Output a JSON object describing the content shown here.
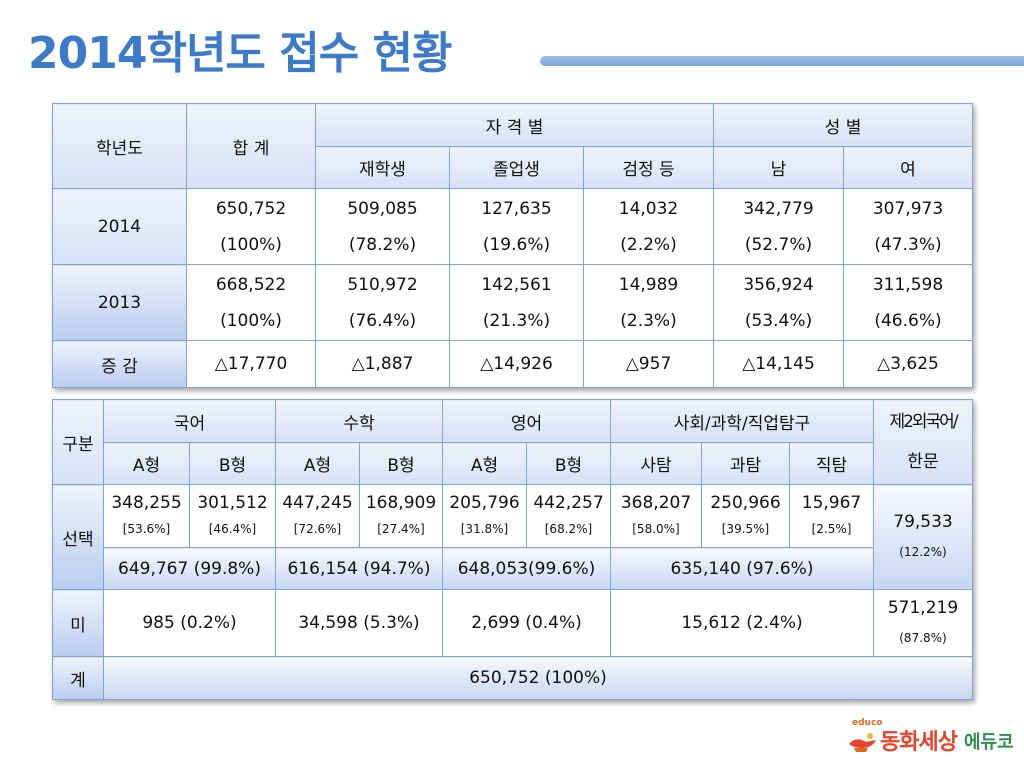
{
  "title": "2014학년도 접수 현황",
  "table1": {
    "h_year": "학년도",
    "h_total": "합 계",
    "h_qual": "자 격 별",
    "h_gender": "성 별",
    "h_sub": [
      "재학생",
      "졸업생",
      "검정 등",
      "남",
      "여"
    ],
    "rows": [
      {
        "year": "2014",
        "cells": [
          {
            "n": "650,752",
            "p": "(100%)"
          },
          {
            "n": "509,085",
            "p": "(78.2%)"
          },
          {
            "n": "127,635",
            "p": "(19.6%)"
          },
          {
            "n": "14,032",
            "p": "(2.2%)"
          },
          {
            "n": "342,779",
            "p": "(52.7%)"
          },
          {
            "n": "307,973",
            "p": "(47.3%)"
          }
        ]
      },
      {
        "year": "2013",
        "cells": [
          {
            "n": "668,522",
            "p": "(100%)"
          },
          {
            "n": "510,972",
            "p": "(76.4%)"
          },
          {
            "n": "142,561",
            "p": "(21.3%)"
          },
          {
            "n": "14,989",
            "p": "(2.3%)"
          },
          {
            "n": "356,924",
            "p": "(53.4%)"
          },
          {
            "n": "311,598",
            "p": "(46.6%)"
          }
        ]
      }
    ],
    "diff_label": "증 감",
    "diff": [
      "△17,770",
      "△1,887",
      "△14,926",
      "△957",
      "△14,145",
      "△3,625"
    ]
  },
  "table2": {
    "h_gubun": "구분",
    "h_korean": "국어",
    "h_math": "수학",
    "h_english": "영어",
    "h_social": "사회/과학/직업탐구",
    "h_foreign1": "제2외국어/",
    "h_foreign2": "한문",
    "h_sub": [
      "A형",
      "B형",
      "A형",
      "B형",
      "A형",
      "B형",
      "사탐",
      "과탐",
      "직탐"
    ],
    "select_label": "선택",
    "select_vals": [
      {
        "n": "348,255",
        "p": "[53.6%]"
      },
      {
        "n": "301,512",
        "p": "[46.4%]"
      },
      {
        "n": "447,245",
        "p": "[72.6%]"
      },
      {
        "n": "168,909",
        "p": "[27.4%]"
      },
      {
        "n": "205,796",
        "p": "[31.8%]"
      },
      {
        "n": "442,257",
        "p": "[68.2%]"
      },
      {
        "n": "368,207",
        "p": "[58.0%]"
      },
      {
        "n": "250,966",
        "p": "[39.5%]"
      },
      {
        "n": "15,967",
        "p": "[2.5%]"
      }
    ],
    "foreign_select": {
      "n": "79,533",
      "p": "(12.2%)"
    },
    "select_totals": [
      "649,767 (99.8%)",
      "616,154 (94.7%)",
      "648,053(99.6%)",
      "635,140 (97.6%)"
    ],
    "mi_label": "미",
    "mi_vals": [
      "985 (0.2%)",
      "34,598 (5.3%)",
      "2,699 (0.4%)",
      "15,612 (2.4%)"
    ],
    "foreign_mi": {
      "n": "571,219",
      "p": "(87.8%)"
    },
    "total_label": "계",
    "total_val": "650,752 (100%)"
  },
  "logo": {
    "small": "educo",
    "main": "동화세상",
    "sub": "에듀코"
  }
}
